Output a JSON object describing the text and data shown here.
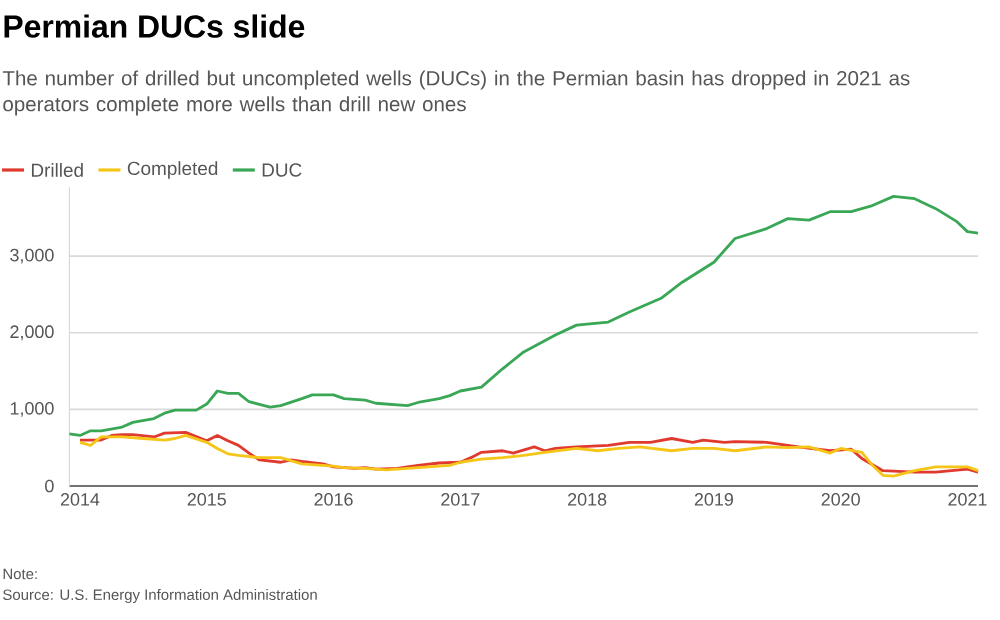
{
  "chart_data": {
    "type": "line",
    "title": "Permian DUCs slide",
    "subtitle": "The number of drilled but uncompleted wells (DUCs) in the Permian basin has dropped in 2021 as operators complete more wells than drill new ones",
    "annotations": [
      "Note:",
      "Source: U.S. Energy Information Administration"
    ],
    "legend": "top left",
    "grid": "y",
    "xlim": [
      "2013-12",
      "2021-02"
    ],
    "xticks": [
      "2014",
      "2015",
      "2016",
      "2017",
      "2018",
      "2019",
      "2020",
      "2021"
    ],
    "ylim": [
      0,
      3900
    ],
    "yticks": [
      0,
      {
        "value": 1000,
        "label": "1,000"
      },
      {
        "value": 2000,
        "label": "2,000"
      },
      {
        "value": 3000,
        "label": "3,000"
      }
    ],
    "series": [
      {
        "name": "Drilled",
        "color": "#e03a2f",
        "x": [
          "2014-01",
          "2014-03",
          "2014-04",
          "2014-05",
          "2014-06",
          "2014-08",
          "2014-09",
          "2014-11",
          "2015-01",
          "2015-02",
          "2015-03",
          "2015-04",
          "2015-05",
          "2015-06",
          "2015-08",
          "2015-09",
          "2015-10",
          "2015-12",
          "2016-01",
          "2016-03",
          "2016-04",
          "2016-05",
          "2016-07",
          "2016-09",
          "2016-11",
          "2017-01",
          "2017-02",
          "2017-03",
          "2017-05",
          "2017-06",
          "2017-08",
          "2017-09",
          "2017-10",
          "2017-12",
          "2018-03",
          "2018-05",
          "2018-07",
          "2018-09",
          "2018-11",
          "2018-12",
          "2019-02",
          "2019-03",
          "2019-06",
          "2019-09",
          "2019-12",
          "2020-02",
          "2020-03",
          "2020-05",
          "2020-08",
          "2020-10",
          "2021-01",
          "2021-02"
        ],
        "values": [
          600,
          600,
          660,
          670,
          670,
          640,
          690,
          700,
          590,
          660,
          590,
          530,
          430,
          340,
          310,
          340,
          320,
          290,
          250,
          230,
          240,
          220,
          230,
          270,
          300,
          310,
          370,
          440,
          460,
          430,
          510,
          460,
          490,
          510,
          530,
          570,
          570,
          620,
          570,
          600,
          570,
          580,
          570,
          510,
          460,
          480,
          360,
          200,
          180,
          180,
          220,
          180
        ]
      },
      {
        "name": "Completed",
        "color": "#f5c518",
        "x": [
          "2014-01",
          "2014-02",
          "2014-03",
          "2014-05",
          "2014-07",
          "2014-09",
          "2014-10",
          "2014-11",
          "2015-01",
          "2015-02",
          "2015-03",
          "2015-04",
          "2015-06",
          "2015-08",
          "2015-10",
          "2016-01",
          "2016-02",
          "2016-04",
          "2016-06",
          "2016-09",
          "2016-12",
          "2017-01",
          "2017-03",
          "2017-05",
          "2017-07",
          "2017-09",
          "2017-12",
          "2018-02",
          "2018-04",
          "2018-06",
          "2018-09",
          "2018-11",
          "2019-01",
          "2019-03",
          "2019-06",
          "2019-08",
          "2019-10",
          "2019-12",
          "2020-01",
          "2020-03",
          "2020-04",
          "2020-05",
          "2020-06",
          "2020-08",
          "2020-10",
          "2021-01",
          "2021-02"
        ],
        "values": [
          570,
          530,
          640,
          640,
          620,
          600,
          620,
          660,
          570,
          490,
          420,
          400,
          370,
          370,
          290,
          260,
          240,
          230,
          210,
          240,
          270,
          310,
          350,
          370,
          400,
          440,
          490,
          460,
          490,
          510,
          460,
          490,
          490,
          460,
          510,
          500,
          510,
          430,
          490,
          440,
          270,
          140,
          130,
          200,
          250,
          250,
          200
        ]
      },
      {
        "name": "DUC",
        "color": "#3aa757",
        "x": [
          "2013-12",
          "2014-01",
          "2014-02",
          "2014-03",
          "2014-05",
          "2014-06",
          "2014-08",
          "2014-09",
          "2014-10",
          "2014-12",
          "2015-01",
          "2015-02",
          "2015-03",
          "2015-04",
          "2015-05",
          "2015-07",
          "2015-08",
          "2015-10",
          "2015-11",
          "2016-01",
          "2016-02",
          "2016-04",
          "2016-05",
          "2016-08",
          "2016-09",
          "2016-11",
          "2016-12",
          "2017-01",
          "2017-03",
          "2017-05",
          "2017-07",
          "2017-10",
          "2017-12",
          "2018-03",
          "2018-05",
          "2018-08",
          "2018-10",
          "2019-01",
          "2019-03",
          "2019-06",
          "2019-08",
          "2019-10",
          "2019-12",
          "2020-02",
          "2020-04",
          "2020-06",
          "2020-08",
          "2020-10",
          "2020-12",
          "2021-01",
          "2021-02"
        ],
        "values": [
          680,
          660,
          720,
          720,
          770,
          830,
          880,
          950,
          990,
          990,
          1070,
          1240,
          1210,
          1210,
          1100,
          1030,
          1050,
          1140,
          1190,
          1190,
          1140,
          1120,
          1080,
          1050,
          1090,
          1140,
          1180,
          1240,
          1290,
          1530,
          1750,
          1970,
          2100,
          2140,
          2270,
          2450,
          2660,
          2920,
          3230,
          3360,
          3490,
          3470,
          3580,
          3580,
          3660,
          3780,
          3750,
          3620,
          3450,
          3320,
          3300
        ]
      }
    ]
  }
}
